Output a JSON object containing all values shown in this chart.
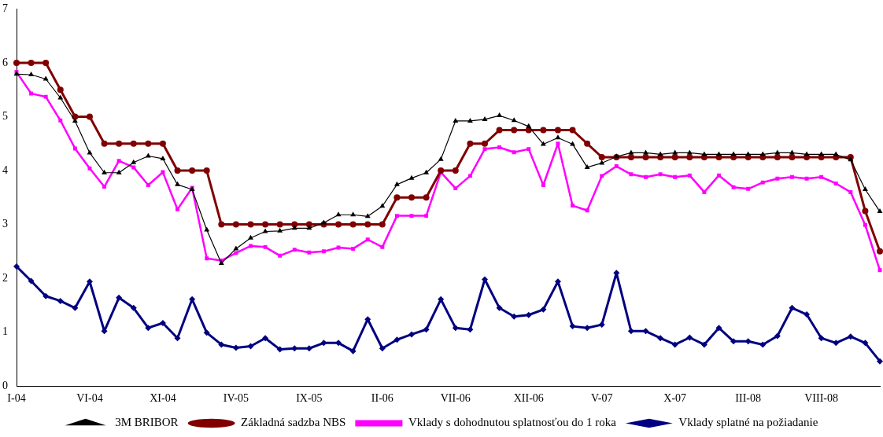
{
  "chart_data": {
    "type": "line",
    "categories": [
      "I-04",
      null,
      null,
      null,
      null,
      "VI-04",
      null,
      null,
      null,
      null,
      "XI-04",
      null,
      null,
      null,
      null,
      "IV-05",
      null,
      null,
      null,
      null,
      "IX-05",
      null,
      null,
      null,
      null,
      "II-06",
      null,
      null,
      null,
      null,
      "VII-06",
      null,
      null,
      null,
      null,
      "XII-06",
      null,
      null,
      null,
      null,
      "V-07",
      null,
      null,
      null,
      null,
      "X-07",
      null,
      null,
      null,
      null,
      "III-08",
      null,
      null,
      null,
      null,
      "VIII-08",
      null,
      null,
      null,
      null
    ],
    "series": [
      {
        "name": "Vklady splatné na požiadanie",
        "color": "#000080",
        "marker": "diamond",
        "values": [
          2.22,
          1.95,
          1.67,
          1.58,
          1.45,
          1.94,
          1.02,
          1.64,
          1.45,
          1.08,
          1.17,
          0.89,
          1.61,
          0.99,
          0.77,
          0.71,
          0.74,
          0.89,
          0.68,
          0.7,
          0.7,
          0.8,
          0.8,
          0.65,
          1.24,
          0.7,
          0.86,
          0.96,
          1.05,
          1.61,
          1.08,
          1.05,
          1.98,
          1.45,
          1.29,
          1.32,
          1.42,
          1.94,
          1.11,
          1.08,
          1.14,
          2.1,
          1.02,
          1.02,
          0.89,
          0.77,
          0.9,
          0.77,
          1.08,
          0.83,
          0.83,
          0.77,
          0.93,
          1.45,
          1.33,
          0.89,
          0.8,
          0.92,
          0.8,
          0.46
        ]
      },
      {
        "name": "Vklady s dohodnutou splatnosťou do 1 roka",
        "color": "#ff00ff",
        "marker": "square",
        "values": [
          5.83,
          5.43,
          5.37,
          4.93,
          4.41,
          4.04,
          3.7,
          4.18,
          4.06,
          3.73,
          3.97,
          3.28,
          3.68,
          2.37,
          2.33,
          2.47,
          2.6,
          2.58,
          2.42,
          2.53,
          2.48,
          2.5,
          2.57,
          2.55,
          2.72,
          2.58,
          3.16,
          3.16,
          3.16,
          3.97,
          3.67,
          3.9,
          4.4,
          4.43,
          4.34,
          4.4,
          3.73,
          4.5,
          3.35,
          3.26,
          3.9,
          4.08,
          3.93,
          3.88,
          3.93,
          3.88,
          3.91,
          3.6,
          3.91,
          3.69,
          3.66,
          3.78,
          3.85,
          3.88,
          3.85,
          3.88,
          3.76,
          3.6,
          2.99,
          2.15
        ]
      },
      {
        "name": "Základná sadzba NBS",
        "color": "#800000",
        "marker": "circle",
        "values": [
          6,
          6,
          6,
          5.5,
          5,
          5,
          4.5,
          4.5,
          4.5,
          4.5,
          4.5,
          4,
          4,
          4,
          3,
          3,
          3,
          3,
          3,
          3,
          3,
          3,
          3,
          3,
          3,
          3,
          3.5,
          3.5,
          3.5,
          4,
          4,
          4.5,
          4.5,
          4.75,
          4.75,
          4.75,
          4.75,
          4.75,
          4.75,
          4.5,
          4.25,
          4.25,
          4.25,
          4.25,
          4.25,
          4.25,
          4.25,
          4.25,
          4.25,
          4.25,
          4.25,
          4.25,
          4.25,
          4.25,
          4.25,
          4.25,
          4.25,
          4.25,
          3.25,
          2.5
        ]
      },
      {
        "name": "3M BRIBOR",
        "color": "#000000",
        "marker": "triangle",
        "values": [
          5.79,
          5.78,
          5.7,
          5.35,
          4.92,
          4.33,
          3.96,
          3.96,
          4.15,
          4.27,
          4.22,
          3.74,
          3.65,
          2.9,
          2.28,
          2.55,
          2.75,
          2.87,
          2.88,
          2.93,
          2.93,
          3.03,
          3.18,
          3.18,
          3.15,
          3.34,
          3.74,
          3.86,
          3.96,
          4.21,
          4.92,
          4.92,
          4.95,
          5.02,
          4.93,
          4.82,
          4.49,
          4.61,
          4.49,
          4.06,
          4.14,
          4.26,
          4.33,
          4.33,
          4.3,
          4.33,
          4.33,
          4.3,
          4.3,
          4.3,
          4.3,
          4.3,
          4.33,
          4.33,
          4.3,
          4.3,
          4.3,
          4.2,
          3.65,
          3.24
        ]
      }
    ],
    "ylim": [
      0,
      7
    ],
    "yticks": [
      0,
      1,
      2,
      3,
      4,
      5,
      6,
      7
    ],
    "grid": false,
    "legend": "bottom"
  }
}
